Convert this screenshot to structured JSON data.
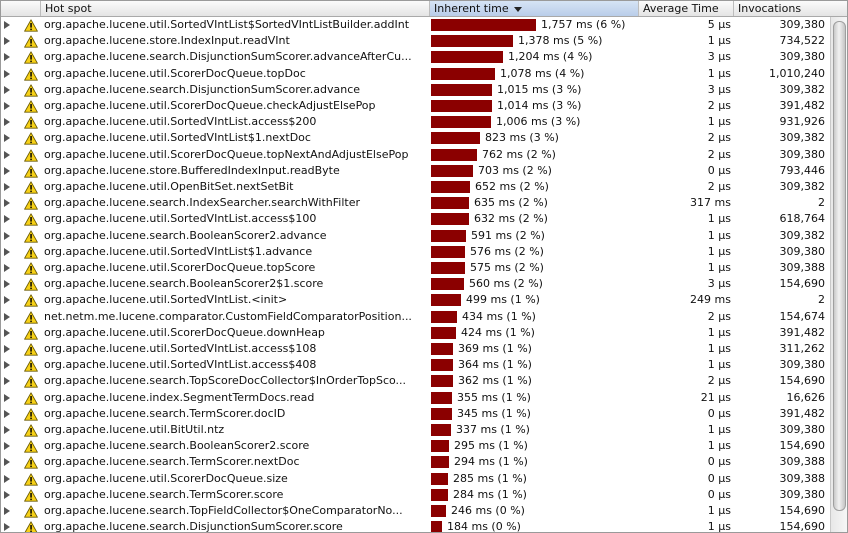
{
  "columns": {
    "hotspot": "Hot spot",
    "inherent": "Inherent time",
    "average": "Average Time",
    "invocations": "Invocations"
  },
  "sort_column": "inherent",
  "bar_color": "#8b0000",
  "max_inherent_ms": 1757,
  "rows": [
    {
      "name": "org.apache.lucene.util.SortedVIntList$SortedVIntListBuilder.addInt",
      "time_ms": 1757,
      "time": "1,757 ms (6 %)",
      "avg": "5 μs",
      "inv": "309,380"
    },
    {
      "name": "org.apache.lucene.store.IndexInput.readVInt",
      "time_ms": 1378,
      "time": "1,378 ms (5 %)",
      "avg": "1 μs",
      "inv": "734,522"
    },
    {
      "name": "org.apache.lucene.search.DisjunctionSumScorer.advanceAfterCu...",
      "time_ms": 1204,
      "time": "1,204 ms (4 %)",
      "avg": "3 μs",
      "inv": "309,380"
    },
    {
      "name": "org.apache.lucene.util.ScorerDocQueue.topDoc",
      "time_ms": 1078,
      "time": "1,078 ms (4 %)",
      "avg": "1 μs",
      "inv": "1,010,240"
    },
    {
      "name": "org.apache.lucene.search.DisjunctionSumScorer.advance",
      "time_ms": 1015,
      "time": "1,015 ms (3 %)",
      "avg": "3 μs",
      "inv": "309,382"
    },
    {
      "name": "org.apache.lucene.util.ScorerDocQueue.checkAdjustElsePop",
      "time_ms": 1014,
      "time": "1,014 ms (3 %)",
      "avg": "2 μs",
      "inv": "391,482"
    },
    {
      "name": "org.apache.lucene.util.SortedVIntList.access$200",
      "time_ms": 1006,
      "time": "1,006 ms (3 %)",
      "avg": "1 μs",
      "inv": "931,926"
    },
    {
      "name": "org.apache.lucene.util.SortedVIntList$1.nextDoc",
      "time_ms": 823,
      "time": "823 ms (3 %)",
      "avg": "2 μs",
      "inv": "309,382"
    },
    {
      "name": "org.apache.lucene.util.ScorerDocQueue.topNextAndAdjustElsePop",
      "time_ms": 762,
      "time": "762 ms (2 %)",
      "avg": "2 μs",
      "inv": "309,380"
    },
    {
      "name": "org.apache.lucene.store.BufferedIndexInput.readByte",
      "time_ms": 703,
      "time": "703 ms (2 %)",
      "avg": "0 μs",
      "inv": "793,446"
    },
    {
      "name": "org.apache.lucene.util.OpenBitSet.nextSetBit",
      "time_ms": 652,
      "time": "652 ms (2 %)",
      "avg": "2 μs",
      "inv": "309,382"
    },
    {
      "name": "org.apache.lucene.search.IndexSearcher.searchWithFilter",
      "time_ms": 635,
      "time": "635 ms (2 %)",
      "avg": "317 ms",
      "inv": "2"
    },
    {
      "name": "org.apache.lucene.util.SortedVIntList.access$100",
      "time_ms": 632,
      "time": "632 ms (2 %)",
      "avg": "1 μs",
      "inv": "618,764"
    },
    {
      "name": "org.apache.lucene.search.BooleanScorer2.advance",
      "time_ms": 591,
      "time": "591 ms (2 %)",
      "avg": "1 μs",
      "inv": "309,382"
    },
    {
      "name": "org.apache.lucene.util.SortedVIntList$1.advance",
      "time_ms": 576,
      "time": "576 ms (2 %)",
      "avg": "1 μs",
      "inv": "309,380"
    },
    {
      "name": "org.apache.lucene.util.ScorerDocQueue.topScore",
      "time_ms": 575,
      "time": "575 ms (2 %)",
      "avg": "1 μs",
      "inv": "309,388"
    },
    {
      "name": "org.apache.lucene.search.BooleanScorer2$1.score",
      "time_ms": 560,
      "time": "560 ms (2 %)",
      "avg": "3 μs",
      "inv": "154,690"
    },
    {
      "name": "org.apache.lucene.util.SortedVIntList.<init>",
      "time_ms": 499,
      "time": "499 ms (1 %)",
      "avg": "249 ms",
      "inv": "2"
    },
    {
      "name": "net.netm.me.lucene.comparator.CustomFieldComparatorPosition...",
      "time_ms": 434,
      "time": "434 ms (1 %)",
      "avg": "2 μs",
      "inv": "154,674"
    },
    {
      "name": "org.apache.lucene.util.ScorerDocQueue.downHeap",
      "time_ms": 424,
      "time": "424 ms (1 %)",
      "avg": "1 μs",
      "inv": "391,482"
    },
    {
      "name": "org.apache.lucene.util.SortedVIntList.access$108",
      "time_ms": 369,
      "time": "369 ms (1 %)",
      "avg": "1 μs",
      "inv": "311,262"
    },
    {
      "name": "org.apache.lucene.util.SortedVIntList.access$408",
      "time_ms": 364,
      "time": "364 ms (1 %)",
      "avg": "1 μs",
      "inv": "309,380"
    },
    {
      "name": "org.apache.lucene.search.TopScoreDocCollector$InOrderTopSco...",
      "time_ms": 362,
      "time": "362 ms (1 %)",
      "avg": "2 μs",
      "inv": "154,690"
    },
    {
      "name": "org.apache.lucene.index.SegmentTermDocs.read",
      "time_ms": 355,
      "time": "355 ms (1 %)",
      "avg": "21 μs",
      "inv": "16,626"
    },
    {
      "name": "org.apache.lucene.search.TermScorer.docID",
      "time_ms": 345,
      "time": "345 ms (1 %)",
      "avg": "0 μs",
      "inv": "391,482"
    },
    {
      "name": "org.apache.lucene.util.BitUtil.ntz",
      "time_ms": 337,
      "time": "337 ms (1 %)",
      "avg": "1 μs",
      "inv": "309,380"
    },
    {
      "name": "org.apache.lucene.search.BooleanScorer2.score",
      "time_ms": 295,
      "time": "295 ms (1 %)",
      "avg": "1 μs",
      "inv": "154,690"
    },
    {
      "name": "org.apache.lucene.search.TermScorer.nextDoc",
      "time_ms": 294,
      "time": "294 ms (1 %)",
      "avg": "0 μs",
      "inv": "309,388"
    },
    {
      "name": "org.apache.lucene.util.ScorerDocQueue.size",
      "time_ms": 285,
      "time": "285 ms (1 %)",
      "avg": "0 μs",
      "inv": "309,388"
    },
    {
      "name": "org.apache.lucene.search.TermScorer.score",
      "time_ms": 284,
      "time": "284 ms (1 %)",
      "avg": "0 μs",
      "inv": "309,380"
    },
    {
      "name": "org.apache.lucene.search.TopFieldCollector$OneComparatorNo...",
      "time_ms": 246,
      "time": "246 ms (0 %)",
      "avg": "1 μs",
      "inv": "154,690"
    },
    {
      "name": "org.apache.lucene.search.DisjunctionSumScorer.score",
      "time_ms": 184,
      "time": "184 ms (0 %)",
      "avg": "1 μs",
      "inv": "154,690"
    }
  ]
}
